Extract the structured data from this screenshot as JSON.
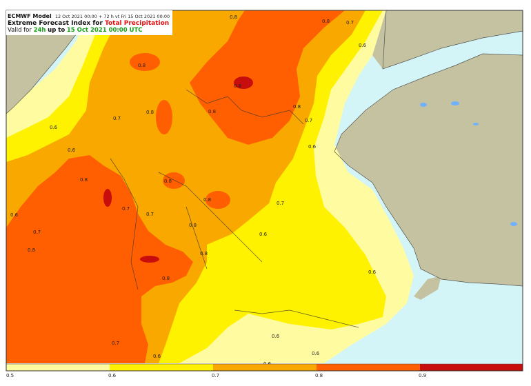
{
  "header": {
    "model": "ECMWF Model",
    "run_info": "12 Oct 2021 00:00 + 72 h vt Fri 15 Oct 2021 00:00",
    "title_prefix": "Extreme Forecast Index for",
    "parameter": "Total Precipitation",
    "valid_prefix": "Valid for",
    "period": "24h",
    "valid_mid": "up to",
    "valid_date": "15 Oct 2021 00:00 UTC"
  },
  "colors": {
    "sea": "#d4f5f8",
    "land": "#c5c2a2",
    "efi_0_5_0_6": "#fffba0",
    "efi_0_6_0_7": "#fff200",
    "efi_0_7_0_8": "#f9a800",
    "efi_0_8_0_9": "#ff5f00",
    "efi_0_9_plus": "#c80d0d"
  },
  "map_labels": [
    "0.8",
    "0.8",
    "0.7",
    "0.8",
    "0.6",
    "0.8",
    "0.8",
    "0.8",
    "0.8",
    "0.7",
    "0.6",
    "0.7",
    "0.6",
    "0.8",
    "0.6",
    "0.8",
    "0.7",
    "0.7",
    "0.6",
    "0.8",
    "0.7",
    "0.8",
    "0.8",
    "0.7",
    "0.6",
    "0.6",
    "0.6",
    "0.8",
    "0.7",
    "0.6",
    "0.6",
    "0.6",
    "0.8"
  ],
  "colorbar": {
    "ticks": [
      "0.5",
      "0.6",
      "0.7",
      "0.8",
      "0.9"
    ]
  }
}
